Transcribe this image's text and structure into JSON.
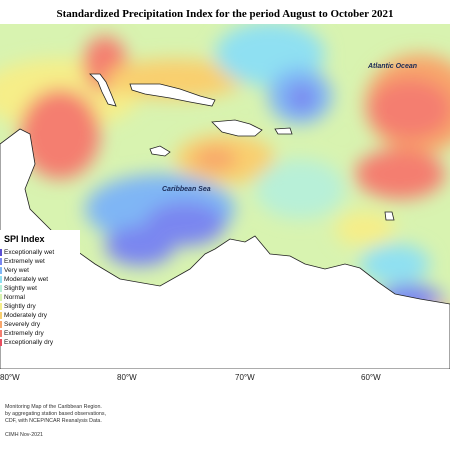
{
  "title": "Standardized Precipitation Index for the period August to October 2021",
  "map": {
    "labels": {
      "atlantic": "Atlantic Ocean",
      "caribbean": "Caribbean Sea"
    },
    "longitudes": [
      "80°W",
      "80°W",
      "70°W",
      "60°W"
    ]
  },
  "legend": {
    "title": "SPI Index",
    "items": [
      {
        "label": "Exceptionally wet",
        "color": "#5b4fd1"
      },
      {
        "label": "Extremely wet",
        "color": "#7a86f0"
      },
      {
        "label": "Very wet",
        "color": "#7fb6f5"
      },
      {
        "label": "Moderately wet",
        "color": "#8fe0f2"
      },
      {
        "label": "Slightly wet",
        "color": "#b8f0d8"
      },
      {
        "label": "Normal",
        "color": "#d8f3b0"
      },
      {
        "label": "Slightly dry",
        "color": "#f6ee88"
      },
      {
        "label": "Moderately dry",
        "color": "#f9cf6e"
      },
      {
        "label": "Severely dry",
        "color": "#f8a56a"
      },
      {
        "label": "Extremely dry",
        "color": "#f47e70"
      },
      {
        "label": "Exceptionally dry",
        "color": "#e84d5f"
      }
    ]
  },
  "footer": {
    "lines": [
      "Monitoring Map of the Caribbean Region.",
      "by aggregating station based observations,",
      "CDF, with NCEP/NCAR Reanalysis Data."
    ],
    "credit": "CIMH Nov-2021"
  }
}
